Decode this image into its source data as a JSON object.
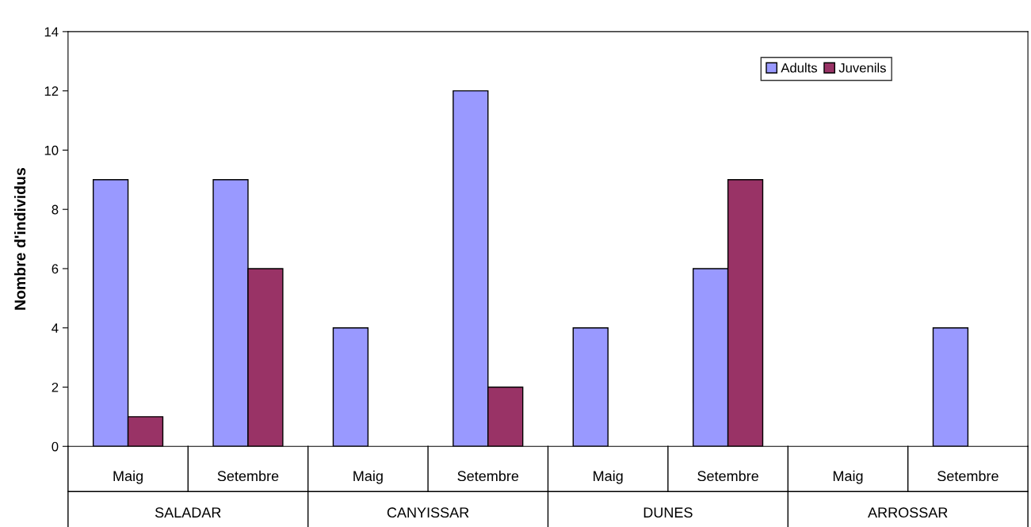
{
  "chart_data": {
    "type": "bar",
    "ylabel": "Nombre d'individus",
    "categories": [
      "Maig",
      "Setembre",
      "Maig",
      "Setembre",
      "Maig",
      "Setembre",
      "Maig",
      "Setembre"
    ],
    "series": [
      {
        "name": "Adults",
        "color": "#9999ff",
        "values": [
          9,
          9,
          4,
          12,
          4,
          6,
          0,
          4
        ]
      },
      {
        "name": "Juvenils",
        "color": "#993366",
        "values": [
          1,
          6,
          0,
          2,
          0,
          9,
          0,
          0
        ]
      }
    ],
    "annotations": [
      "SALADAR",
      "CANYISSAR",
      "DUNES",
      "ARROSSAR"
    ],
    "ylim": [
      0,
      14
    ],
    "yticks": [
      0,
      2,
      4,
      6,
      8,
      10,
      12,
      14
    ],
    "grid": false,
    "legend": "top right"
  }
}
